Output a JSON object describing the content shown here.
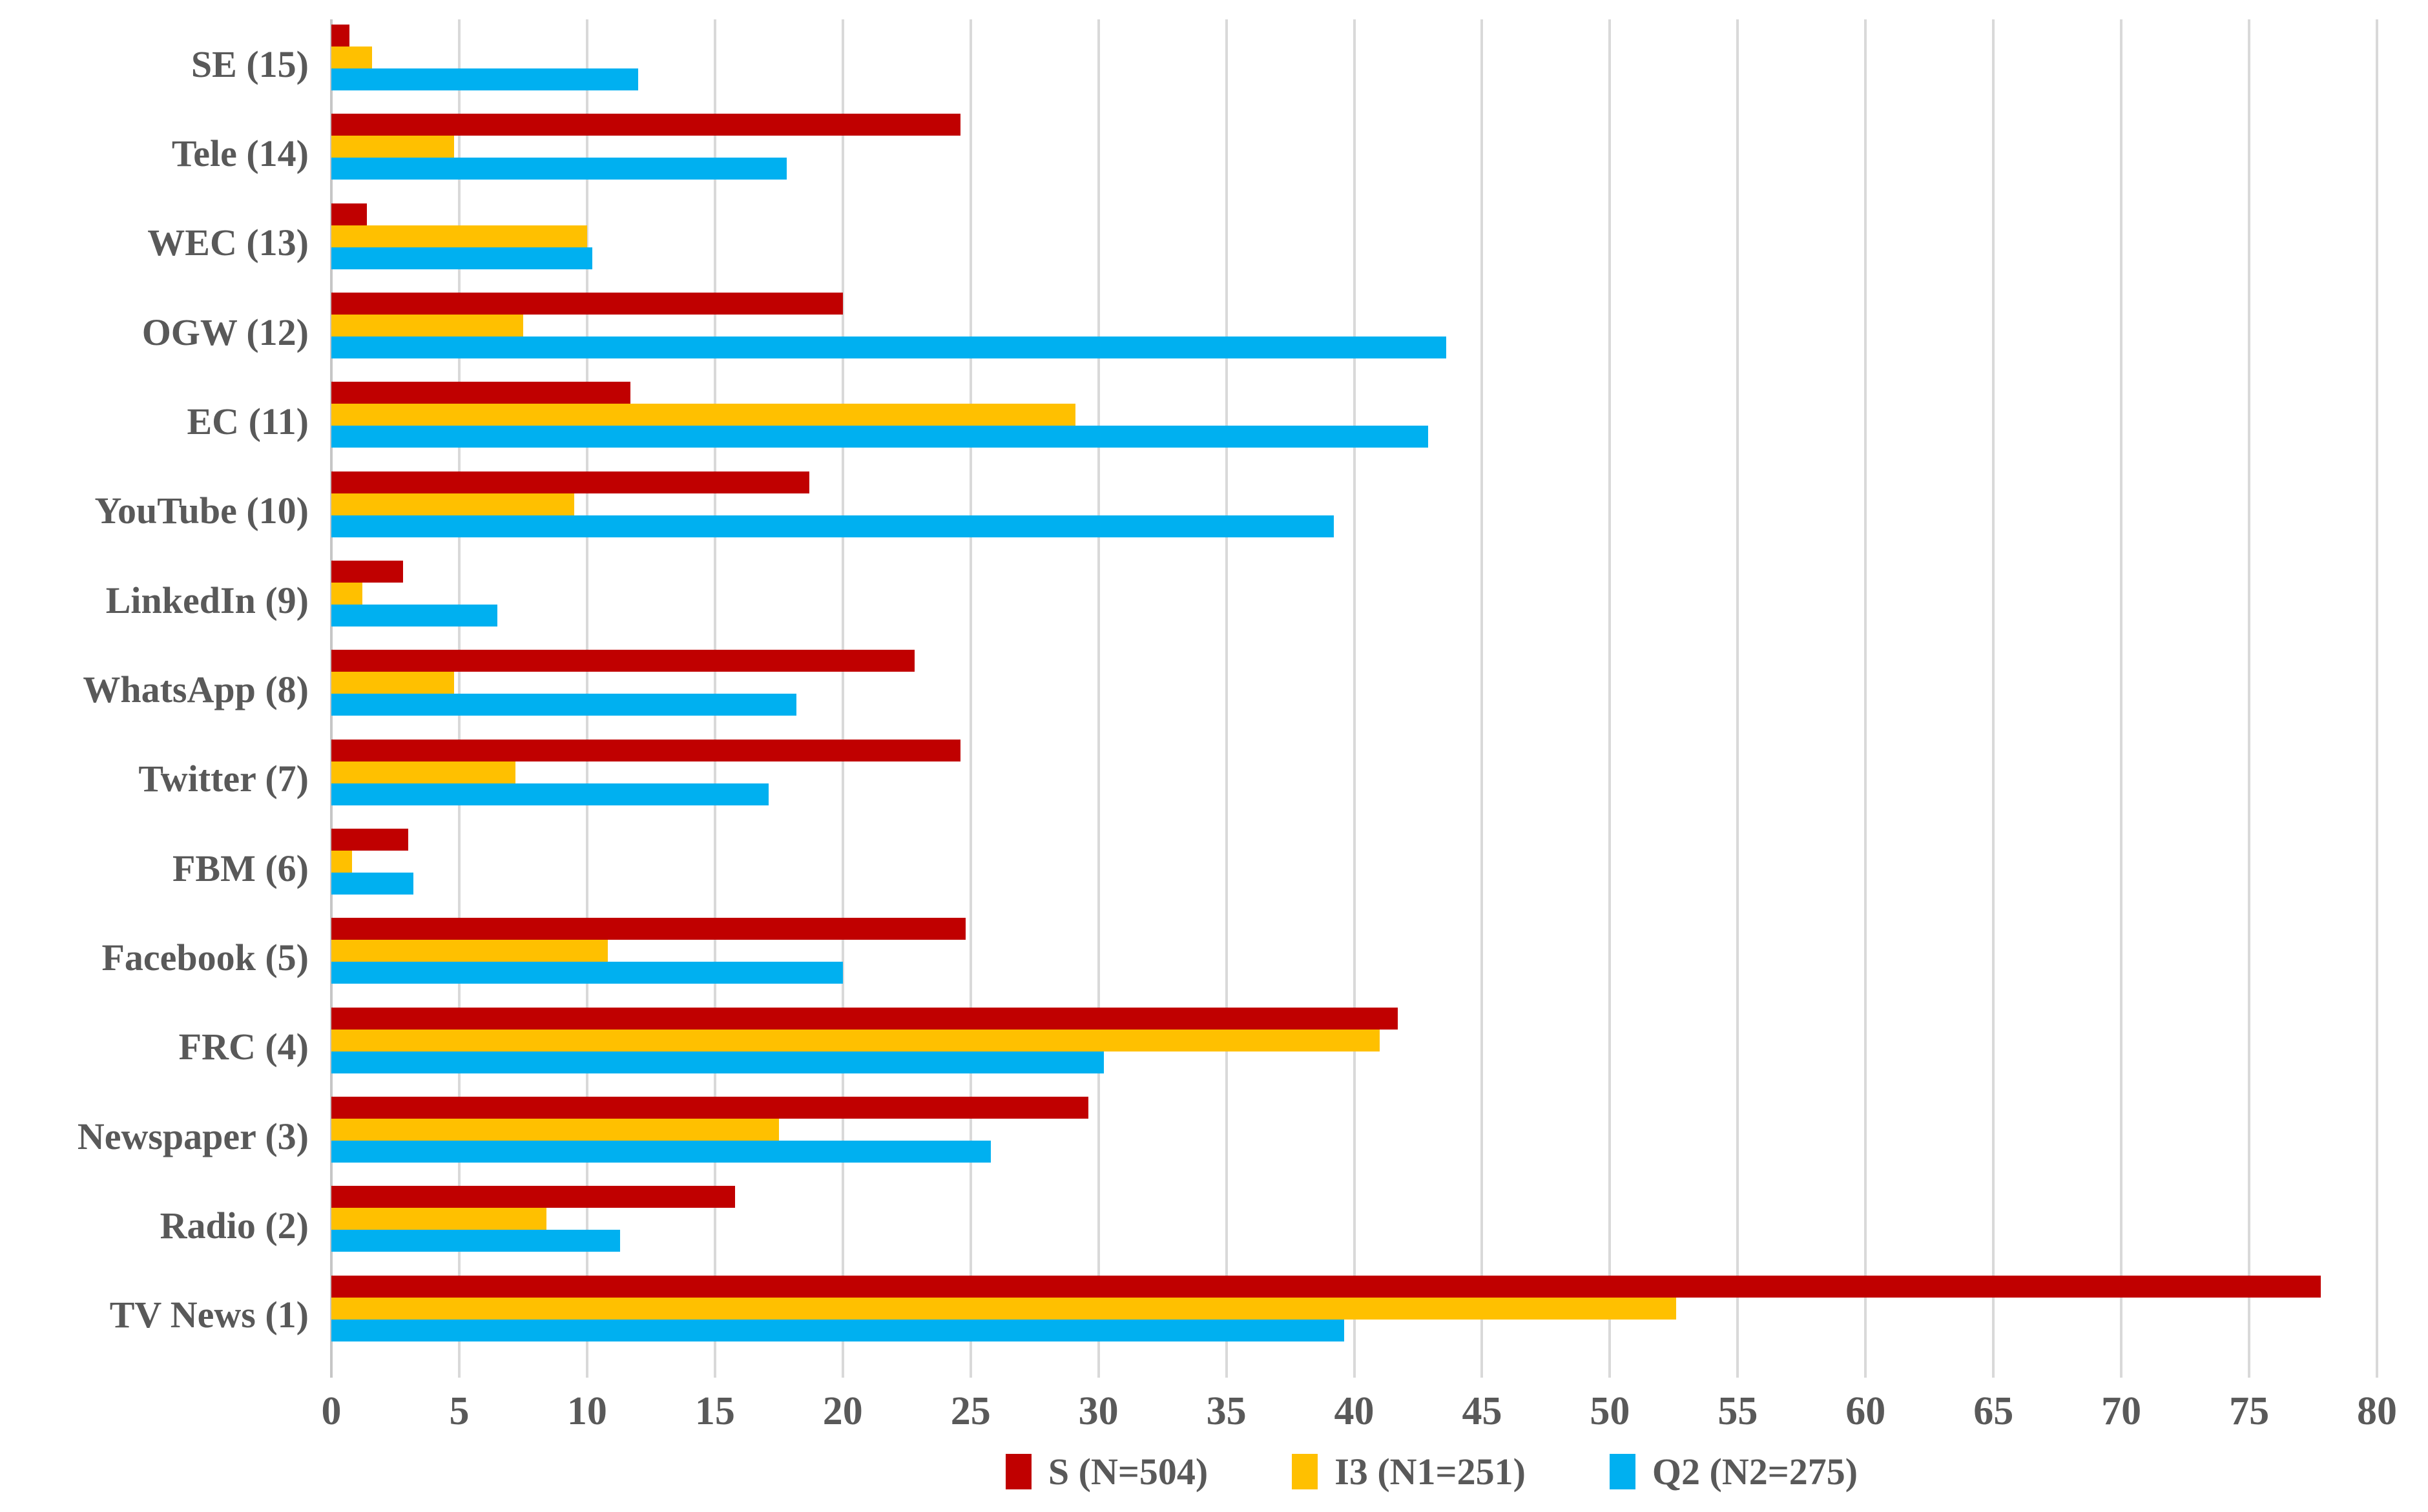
{
  "chart_data": {
    "type": "bar",
    "orientation": "horizontal",
    "title": "",
    "xlabel": "",
    "ylabel": "",
    "categories": [
      "SE (15)",
      "Tele (14)",
      "WEC (13)",
      "OGW (12)",
      "EC (11)",
      "YouTube (10)",
      "LinkedIn (9)",
      "WhatsApp (8)",
      "Twitter (7)",
      "FBM (6)",
      "Facebook (5)",
      "FRC (4)",
      "Newspaper (3)",
      "Radio (2)",
      "TV News (1)"
    ],
    "series": [
      {
        "name": "S (N=504)",
        "color": "#C00000",
        "values": [
          0.7,
          24.6,
          1.4,
          20.0,
          11.7,
          18.7,
          2.8,
          22.8,
          24.6,
          3.0,
          24.8,
          41.7,
          29.6,
          15.8,
          77.8
        ]
      },
      {
        "name": "I3 (N1=251)",
        "color": "#FFC000",
        "values": [
          1.6,
          4.8,
          10.0,
          7.5,
          29.1,
          9.5,
          1.2,
          4.8,
          7.2,
          0.8,
          10.8,
          41.0,
          17.5,
          8.4,
          52.6
        ]
      },
      {
        "name": "Q2 (N2=275)",
        "color": "#00B0F0",
        "values": [
          12.0,
          17.8,
          10.2,
          43.6,
          42.9,
          39.2,
          6.5,
          18.2,
          17.1,
          3.2,
          20.0,
          30.2,
          25.8,
          11.3,
          39.6
        ]
      }
    ],
    "xlim": [
      0,
      80
    ],
    "x_ticks": [
      0,
      5,
      10,
      15,
      20,
      25,
      30,
      35,
      40,
      45,
      50,
      55,
      60,
      65,
      70,
      75,
      80
    ],
    "grid": "vertical",
    "gridline_color": "#D9D9D9",
    "axis_line_color": "#C6C6C6",
    "label_color": "#595959",
    "legend_position": "bottom-center"
  }
}
